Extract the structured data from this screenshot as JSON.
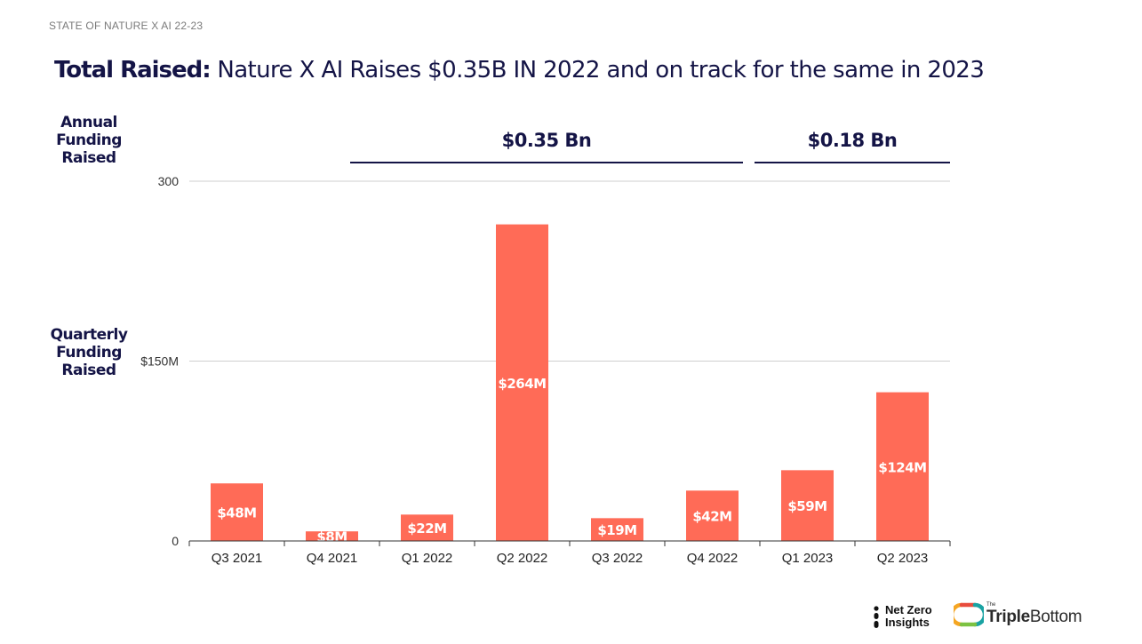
{
  "header": {
    "tag": "STATE OF NATURE X AI 22-23"
  },
  "title": {
    "bold": "Total Raised:",
    "rest": " Nature X AI Raises $0.35B IN 2022 and on track for the same in 2023"
  },
  "labels": {
    "annual": "Annual Funding Raised",
    "quarterly": "Quarterly Funding Raised"
  },
  "annual_totals": [
    {
      "label": "$0.35 Bn",
      "first_category": "Q1 2022",
      "last_category": "Q4 2022"
    },
    {
      "label": "$0.18 Bn",
      "first_category": "Q1 2023",
      "last_category": "Q2 2023"
    }
  ],
  "colors": {
    "bar": "#ff6b57",
    "grid": "#cfcfcf",
    "axis": "#333333",
    "text_dark": "#141446",
    "bar_label": "#ffffff"
  },
  "chart_data": {
    "type": "bar",
    "title": "",
    "xlabel": "",
    "ylabel": "",
    "categories": [
      "Q3 2021",
      "Q4 2021",
      "Q1 2022",
      "Q2 2022",
      "Q3 2022",
      "Q4 2022",
      "Q1 2023",
      "Q2 2023"
    ],
    "values": [
      48,
      8,
      22,
      264,
      19,
      42,
      59,
      124
    ],
    "data_labels": [
      "$48M",
      "$8M",
      "$22M",
      "$264M",
      "$19M",
      "$42M",
      "$59M",
      "$124M"
    ],
    "ylim": [
      0,
      300
    ],
    "y_ticks": [
      0,
      150,
      300
    ],
    "y_tick_labels": [
      "0",
      "$150M",
      "300"
    ],
    "grid": true,
    "legend": "none"
  },
  "logos": {
    "netzero": {
      "line1": "Net Zero",
      "line2": "Insights"
    },
    "triplebottom": {
      "the": "The",
      "part1": "Triple",
      "part2": "Bottom"
    }
  }
}
